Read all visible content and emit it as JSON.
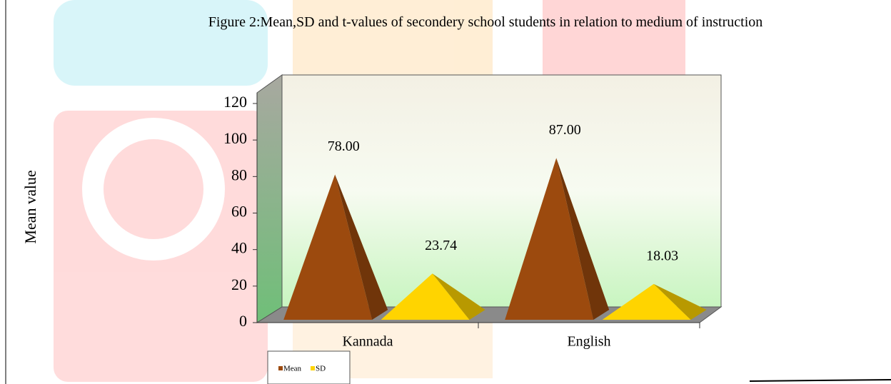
{
  "chart_data": {
    "type": "pyramid-bar",
    "title": "Figure 2:Mean,SD and t-values of secondery school students in relation to medium of instruction",
    "y_label": "Mean value",
    "categories": [
      "Kannada",
      "English"
    ],
    "series": [
      {
        "name": "Mean",
        "color": "#9c4a0e",
        "values": [
          78,
          87
        ],
        "value_labels": [
          "78.00",
          "87.00"
        ]
      },
      {
        "name": "SD",
        "color": "#ffd400",
        "values": [
          23.74,
          18.03
        ],
        "value_labels": [
          "23.74",
          "18.03"
        ]
      }
    ],
    "ylim": [
      0,
      120
    ],
    "yticks": [
      0,
      20,
      40,
      60,
      80,
      100,
      120
    ],
    "legend": "bottom-left"
  }
}
